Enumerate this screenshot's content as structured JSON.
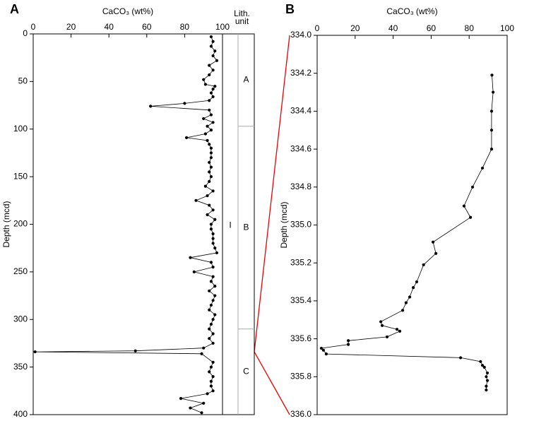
{
  "chart_data": [
    {
      "type": "line",
      "panel_label": "A",
      "xlabel": "CaCO₃ (wt%)",
      "ylabel": "Depth (mcd)",
      "xlim": [
        0,
        100
      ],
      "xticks": [
        0,
        20,
        40,
        60,
        80,
        100
      ],
      "ylim": [
        0,
        400
      ],
      "yticks": [
        0,
        50,
        100,
        150,
        200,
        250,
        300,
        350,
        400
      ],
      "lith_header": [
        "Lith.",
        "unit"
      ],
      "unit": "I",
      "subunits": [
        {
          "label": "A",
          "top": 0,
          "bottom": 97
        },
        {
          "label": "B",
          "top": 97,
          "bottom": 310
        },
        {
          "label": "C",
          "top": 310,
          "bottom": 400
        }
      ],
      "depth": [
        3,
        8,
        13,
        18,
        23,
        28,
        33,
        38,
        43,
        48,
        53,
        55,
        58,
        62,
        66,
        70,
        73,
        76,
        80,
        85,
        89,
        93,
        97,
        101,
        105,
        109,
        112,
        116,
        120,
        125,
        130,
        135,
        140,
        145,
        150,
        155,
        160,
        165,
        170,
        175,
        180,
        185,
        190,
        195,
        200,
        205,
        210,
        215,
        220,
        225,
        230,
        235,
        240,
        245,
        250,
        255,
        260,
        265,
        270,
        275,
        280,
        285,
        290,
        295,
        300,
        305,
        310,
        315,
        320,
        325,
        330,
        333,
        334,
        336,
        345,
        350,
        355,
        360,
        365,
        370,
        375,
        378,
        383,
        388,
        393,
        398
      ],
      "values": [
        94,
        95,
        94,
        96,
        95,
        97,
        93,
        95,
        93,
        90,
        91,
        96,
        95,
        94,
        95,
        93,
        80,
        62,
        93,
        94,
        90,
        95,
        92,
        94,
        91,
        81,
        92,
        93,
        94,
        94,
        94,
        93,
        94,
        93,
        94,
        93,
        91,
        95,
        92,
        86,
        93,
        95,
        92,
        96,
        94,
        94,
        95,
        95,
        95,
        96,
        97,
        83,
        94,
        95,
        85,
        95,
        94,
        96,
        93,
        96,
        95,
        94,
        93,
        96,
        95,
        94,
        93,
        95,
        93,
        95,
        90,
        54,
        1,
        89,
        95,
        94,
        93,
        95,
        94,
        94,
        95,
        92,
        78,
        90,
        83,
        89
      ]
    },
    {
      "type": "line",
      "panel_label": "B",
      "xlabel": "CaCO₃ (wt%)",
      "ylabel": "Depth (mcd)",
      "xlim": [
        0,
        100
      ],
      "xticks": [
        0,
        20,
        40,
        60,
        80,
        100
      ],
      "ylim": [
        334,
        336
      ],
      "yticks": [
        {
          "value": 334,
          "label": "334.0"
        },
        {
          "value": 334.2,
          "label": "334.2"
        },
        {
          "value": 334.4,
          "label": "334.4"
        },
        {
          "value": 334.6,
          "label": "334.6"
        },
        {
          "value": 334.8,
          "label": "334.8"
        },
        {
          "value": 335,
          "label": "335.0"
        },
        {
          "value": 335.2,
          "label": "335.2"
        },
        {
          "value": 335.4,
          "label": "335.4"
        },
        {
          "value": 335.6,
          "label": "335.6"
        },
        {
          "value": 335.8,
          "label": "335.8"
        },
        {
          "value": 336,
          "label": "336.0"
        }
      ],
      "depth": [
        334.21,
        334.3,
        334.4,
        334.5,
        334.6,
        334.7,
        334.8,
        334.9,
        334.96,
        335.09,
        335.15,
        335.21,
        335.3,
        335.33,
        335.38,
        335.41,
        335.45,
        335.51,
        335.53,
        335.55,
        335.56,
        335.59,
        335.61,
        335.63,
        335.65,
        335.66,
        335.68,
        335.7,
        335.72,
        335.74,
        335.75,
        335.78,
        335.8,
        335.82,
        335.85,
        335.87
      ],
      "values": [
        92,
        92.6,
        91.8,
        91.8,
        91.8,
        87,
        81.8,
        77.3,
        80.7,
        61,
        62.5,
        56,
        52.4,
        50.6,
        48.7,
        46.8,
        45,
        33.5,
        34.2,
        42,
        43.5,
        36.8,
        16.4,
        16.4,
        2.2,
        3.3,
        4.8,
        75.5,
        86,
        87,
        88,
        89.6,
        89,
        89.6,
        89,
        89
      ]
    }
  ]
}
